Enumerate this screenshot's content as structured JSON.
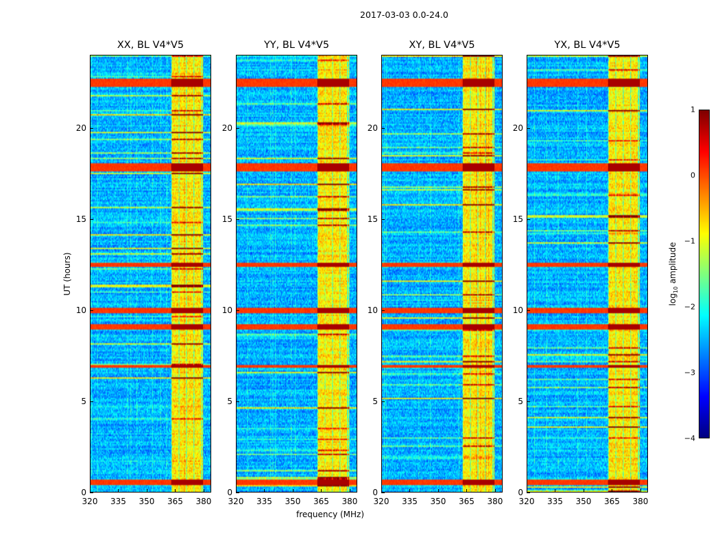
{
  "chart_data": {
    "type": "heatmap",
    "title": "2017-03-03 0.0-24.0",
    "xlabel": "frequency (MHz)",
    "ylabel": "UT (hours)",
    "xlim": [
      320,
      384
    ],
    "ylim": [
      0,
      24
    ],
    "xticks": [
      "320",
      "335",
      "350",
      "365",
      "380"
    ],
    "yticks": [
      "0",
      "5",
      "10",
      "15",
      "20"
    ],
    "xtick_values": [
      320,
      335,
      350,
      365,
      380
    ],
    "ytick_values": [
      0,
      5,
      10,
      15,
      20
    ],
    "colormap": "jet",
    "colorbar": {
      "label": "log10 amplitude",
      "label_main": "log",
      "label_sub": "10",
      "label_rest": " amplitude",
      "range": [
        -4,
        1
      ],
      "ticks": [
        "1",
        "0",
        "−1",
        "−2",
        "−3",
        "−4"
      ],
      "tick_values": [
        1,
        0,
        -1,
        -2,
        -3,
        -4
      ]
    },
    "panels": [
      {
        "title": "XX, BL V4*V5"
      },
      {
        "title": "YY, BL V4*V5"
      },
      {
        "title": "XY, BL V4*V5"
      },
      {
        "title": "YX, BL V4*V5"
      }
    ],
    "rfi_band_mhz": [
      363,
      380
    ],
    "bright_time_bands_hours": [
      [
        0.4,
        0.7
      ],
      [
        6.8,
        7.0
      ],
      [
        8.9,
        9.2
      ],
      [
        9.8,
        10.1
      ],
      [
        12.4,
        12.6
      ],
      [
        17.6,
        18.1
      ],
      [
        22.3,
        22.7
      ]
    ],
    "typical_background_log_amplitude": -2.5,
    "typical_rfi_log_amplitude": -0.8
  }
}
